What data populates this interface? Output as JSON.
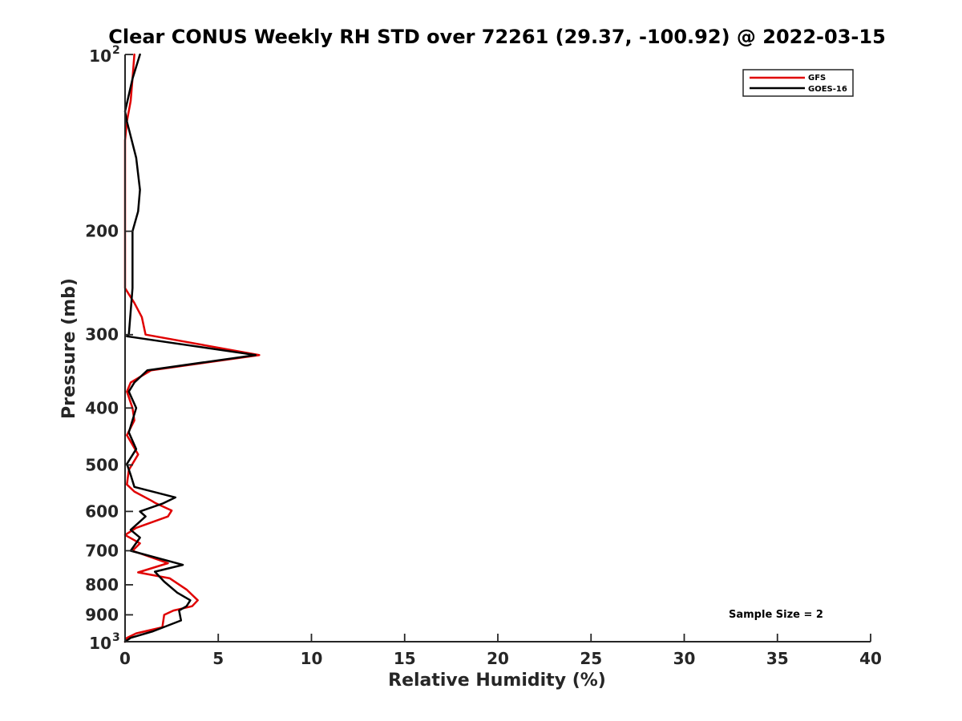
{
  "chart_data": {
    "type": "line",
    "title": "Clear CONUS Weekly RH STD over 72261 (29.37, -100.92) @ 2022-03-15",
    "xlabel": "Relative Humidity (%)",
    "ylabel": "Pressure (mb)",
    "xlim": [
      0,
      40
    ],
    "ylim": [
      100,
      1000
    ],
    "yscale": "log",
    "y_reversed": true,
    "grid": false,
    "legend_position": "top-right",
    "x_ticks": [
      "0",
      "5",
      "10",
      "15",
      "20",
      "25",
      "30",
      "35",
      "40"
    ],
    "y_ticks": [
      {
        "value": 100,
        "base": "10",
        "exp": "2"
      },
      {
        "value": 200,
        "label": "200"
      },
      {
        "value": 300,
        "label": "300"
      },
      {
        "value": 400,
        "label": "400"
      },
      {
        "value": 500,
        "label": "500"
      },
      {
        "value": 600,
        "label": "600"
      },
      {
        "value": 700,
        "label": "700"
      },
      {
        "value": 800,
        "label": "800"
      },
      {
        "value": 900,
        "label": "900"
      },
      {
        "value": 1000,
        "base": "10",
        "exp": "3"
      }
    ],
    "annotation": "Sample Size = 2",
    "series": [
      {
        "name": "GFS",
        "color": "#e00000",
        "points": [
          [
            0.5,
            100
          ],
          [
            0.4,
            110
          ],
          [
            0.3,
            120
          ],
          [
            0.1,
            130
          ],
          [
            0.0,
            140
          ],
          [
            0.0,
            200
          ],
          [
            0.0,
            250
          ],
          [
            0.5,
            265
          ],
          [
            0.9,
            280
          ],
          [
            1.1,
            300
          ],
          [
            7.2,
            325
          ],
          [
            1.4,
            345
          ],
          [
            0.3,
            362
          ],
          [
            0.1,
            375
          ],
          [
            0.4,
            400
          ],
          [
            0.5,
            420
          ],
          [
            0.1,
            445
          ],
          [
            0.7,
            480
          ],
          [
            0.2,
            510
          ],
          [
            0.1,
            540
          ],
          [
            0.5,
            555
          ],
          [
            1.4,
            575
          ],
          [
            1.6,
            580
          ],
          [
            2.5,
            598
          ],
          [
            2.3,
            612
          ],
          [
            0.6,
            640
          ],
          [
            0.0,
            658
          ],
          [
            0.8,
            680
          ],
          [
            0.4,
            700
          ],
          [
            2.3,
            735
          ],
          [
            0.7,
            762
          ],
          [
            2.4,
            780
          ],
          [
            3.3,
            815
          ],
          [
            3.9,
            850
          ],
          [
            3.6,
            870
          ],
          [
            2.6,
            885
          ],
          [
            2.1,
            900
          ],
          [
            2.0,
            945
          ],
          [
            0.6,
            968
          ],
          [
            0.1,
            985
          ],
          [
            0.0,
            1000
          ]
        ]
      },
      {
        "name": "GOES-16",
        "color": "#000000",
        "points": [
          [
            0.8,
            100
          ],
          [
            0.4,
            110
          ],
          [
            0.0,
            125
          ],
          [
            0.1,
            130
          ],
          [
            0.6,
            150
          ],
          [
            0.8,
            170
          ],
          [
            0.7,
            185
          ],
          [
            0.4,
            200
          ],
          [
            0.4,
            250
          ],
          [
            0.2,
            300
          ],
          [
            0.1,
            302
          ],
          [
            7.0,
            325
          ],
          [
            1.2,
            345
          ],
          [
            0.5,
            362
          ],
          [
            0.2,
            375
          ],
          [
            0.6,
            400
          ],
          [
            0.2,
            440
          ],
          [
            0.6,
            470
          ],
          [
            0.1,
            498
          ],
          [
            0.3,
            520
          ],
          [
            0.5,
            545
          ],
          [
            2.7,
            568
          ],
          [
            2.0,
            582
          ],
          [
            0.8,
            600
          ],
          [
            1.1,
            612
          ],
          [
            0.3,
            645
          ],
          [
            0.8,
            665
          ],
          [
            0.3,
            700
          ],
          [
            3.1,
            740
          ],
          [
            1.6,
            760
          ],
          [
            2.1,
            790
          ],
          [
            2.8,
            825
          ],
          [
            3.5,
            850
          ],
          [
            3.3,
            870
          ],
          [
            2.9,
            885
          ],
          [
            3.0,
            920
          ],
          [
            1.5,
            960
          ],
          [
            0.3,
            985
          ],
          [
            0.0,
            1000
          ]
        ]
      }
    ]
  }
}
